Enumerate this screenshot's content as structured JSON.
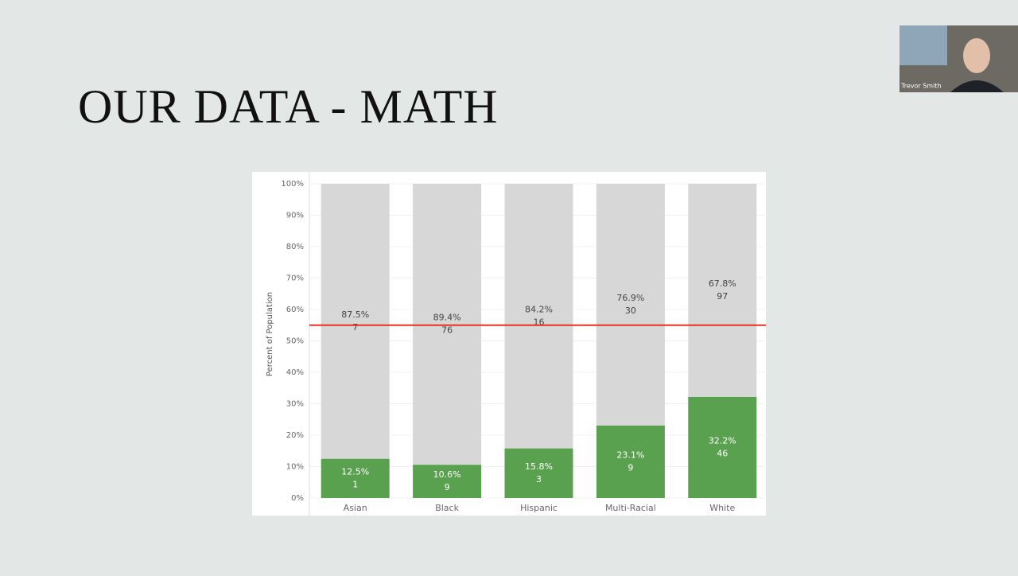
{
  "slide": {
    "title": "OUR DATA - MATH"
  },
  "video": {
    "name": "Trevor Smith"
  },
  "chart_data": {
    "type": "stacked_bar",
    "categories": [
      "Asian",
      "Black",
      "Hispanic",
      "Multi-Racial",
      "White"
    ],
    "y_label": "Percent of Population",
    "series": [
      {
        "color": "#59a14f",
        "values": [
          12.5,
          10.6,
          15.8,
          23.1,
          32.2
        ],
        "value_labels": [
          "12.5%",
          "10.6%",
          "15.8%",
          "23.1%",
          "32.2%"
        ],
        "counts": [
          1,
          9,
          3,
          9,
          46
        ]
      },
      {
        "color": "#d7d7d7",
        "values": [
          87.5,
          89.4,
          84.2,
          76.9,
          67.8
        ],
        "value_labels": [
          "87.5%",
          "89.4%",
          "84.2%",
          "76.9%",
          "67.8%"
        ],
        "counts": [
          7,
          76,
          16,
          30,
          97
        ]
      }
    ],
    "ylim": [
      0,
      100
    ],
    "yticks": [
      {
        "value": 0,
        "label": "0%"
      },
      {
        "value": 10,
        "label": "10%"
      },
      {
        "value": 20,
        "label": "20%"
      },
      {
        "value": 30,
        "label": "30%"
      },
      {
        "value": 40,
        "label": "40%"
      },
      {
        "value": 50,
        "label": "50%"
      },
      {
        "value": 60,
        "label": "60%"
      },
      {
        "value": 70,
        "label": "70%"
      },
      {
        "value": 80,
        "label": "80%"
      },
      {
        "value": 90,
        "label": "90%"
      },
      {
        "value": 100,
        "label": "100%"
      }
    ],
    "reference_line": {
      "value": 55,
      "color": "#e8321e"
    },
    "grid": true
  }
}
